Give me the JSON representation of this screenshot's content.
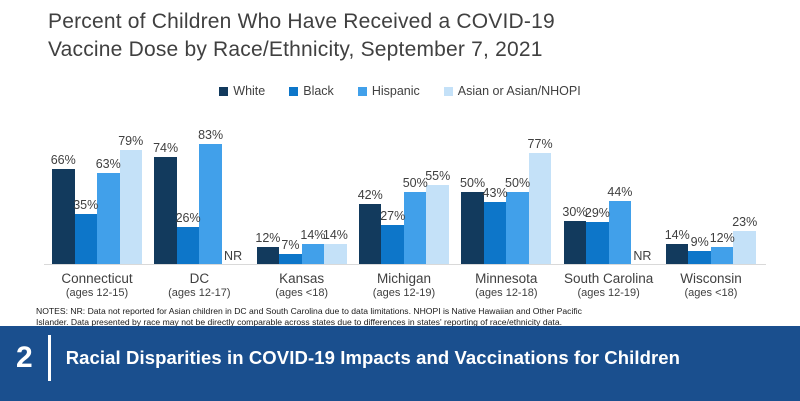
{
  "chart": {
    "title_line1": "Percent of Children Who Have Received a COVID-19",
    "title_line2": "Vaccine Dose by Race/Ethnicity, September 7, 2021"
  },
  "chart_data": {
    "type": "bar",
    "title": "Percent of Children Who Have Received a COVID-19 Vaccine Dose by Race/Ethnicity, September 7, 2021",
    "legend_position": "top",
    "grid": false,
    "ylim": [
      0,
      100
    ],
    "unit": "percent",
    "value_label_suffix": "%",
    "missing_label": "NR",
    "categories": [
      "Connecticut",
      "DC",
      "Kansas",
      "Michigan",
      "Minnesota",
      "South Carolina",
      "Wisconsin"
    ],
    "category_sublabels": [
      "(ages 12-15)",
      "(ages 12-17)",
      "(ages <18)",
      "(ages 12-19)",
      "(ages 12-18)",
      "(ages 12-19)",
      "(ages <18)"
    ],
    "series": [
      {
        "name": "White",
        "color": "#123a5d",
        "values": [
          66,
          74,
          12,
          42,
          50,
          30,
          14
        ]
      },
      {
        "name": "Black",
        "color": "#0d76c9",
        "values": [
          35,
          26,
          7,
          27,
          43,
          29,
          9
        ]
      },
      {
        "name": "Hispanic",
        "color": "#41a0ea",
        "values": [
          63,
          83,
          14,
          50,
          50,
          44,
          12
        ]
      },
      {
        "name": "Asian or Asian/NHOPI",
        "color": "#c4e1f8",
        "values": [
          79,
          null,
          14,
          55,
          77,
          null,
          23
        ]
      }
    ]
  },
  "notes": {
    "line1": "NOTES:  NR: Data not reported for Asian children in DC and South Carolina due to data limitations. NHOPI is Native Hawaiian and Other Pacific",
    "line2": "Islander. Data presented by race may not be directly comparable across states due to differences in states' reporting of race/ethnicity data."
  },
  "footer": {
    "page_number": "2",
    "title": "Racial Disparities in COVID-19 Impacts and Vaccinations for Children"
  },
  "colors": {
    "title_text": "#404040",
    "label_text": "#404040",
    "axis_line": "#d9d9d9",
    "footer_bg": "#1a4f8e",
    "footer_text": "#ffffff"
  }
}
